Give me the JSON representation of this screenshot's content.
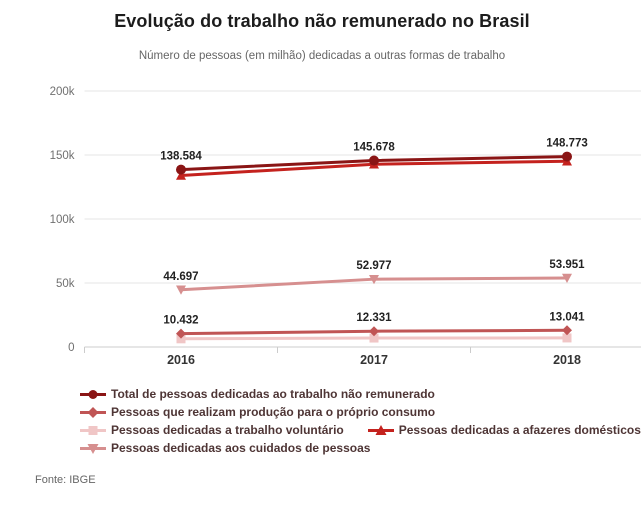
{
  "chart_data": {
    "type": "line",
    "title": "Evolução do trabalho não remunerado no Brasil",
    "subtitle": "Número de pessoas (em milhão) dedicadas a outras formas de trabalho",
    "categories": [
      "2016",
      "2017",
      "2018"
    ],
    "y_axis": {
      "range": [
        0,
        200000
      ],
      "ticks": [
        0,
        50000,
        100000,
        150000,
        200000
      ],
      "tick_labels": [
        "0",
        "50k",
        "100k",
        "150k",
        "200k"
      ]
    },
    "grid": true,
    "legend_position": "bottom",
    "series": [
      {
        "name": "Total de pessoas dedicadas ao trabalho não remunerado",
        "marker": "circle",
        "color": "#8a1515",
        "values": [
          138584,
          145678,
          148773
        ],
        "point_labels": [
          "138.584",
          "145.678",
          "148.773"
        ]
      },
      {
        "name": "Pessoas que realizam produção para o próprio consumo",
        "marker": "diamond",
        "color": "#c05555",
        "values": [
          10432,
          12331,
          13041
        ],
        "point_labels": [
          "10.432",
          "12.331",
          "13.041"
        ]
      },
      {
        "name": "Pessoas dedicadas a trabalho voluntário",
        "marker": "square",
        "color": "#f0c6c6",
        "values": [
          6400,
          7000,
          7100
        ],
        "values_estimated": true,
        "point_labels": null
      },
      {
        "name": "Pessoas dedicadas a afazeres domésticos",
        "marker": "triangle-up",
        "color": "#c4221e",
        "values": [
          134000,
          142800,
          145100
        ],
        "values_estimated": true,
        "point_labels": null
      },
      {
        "name": "Pessoas dedicadas aos cuidados de pessoas",
        "marker": "triangle-down",
        "color": "#d68f8f",
        "values": [
          44697,
          52977,
          53951
        ],
        "point_labels": [
          "44.697",
          "52.977",
          "53.951"
        ]
      }
    ]
  },
  "source": "Fonte: IBGE",
  "colors": {
    "grid": "#e6e6e6",
    "axis": "#cccccc",
    "axis_label": "#707070",
    "category_label": "#333333",
    "data_label": "#222222",
    "legend_text": "#4e3535",
    "title": "#1c1c1c",
    "subtitle": "#666666",
    "background": "#ffffff"
  }
}
